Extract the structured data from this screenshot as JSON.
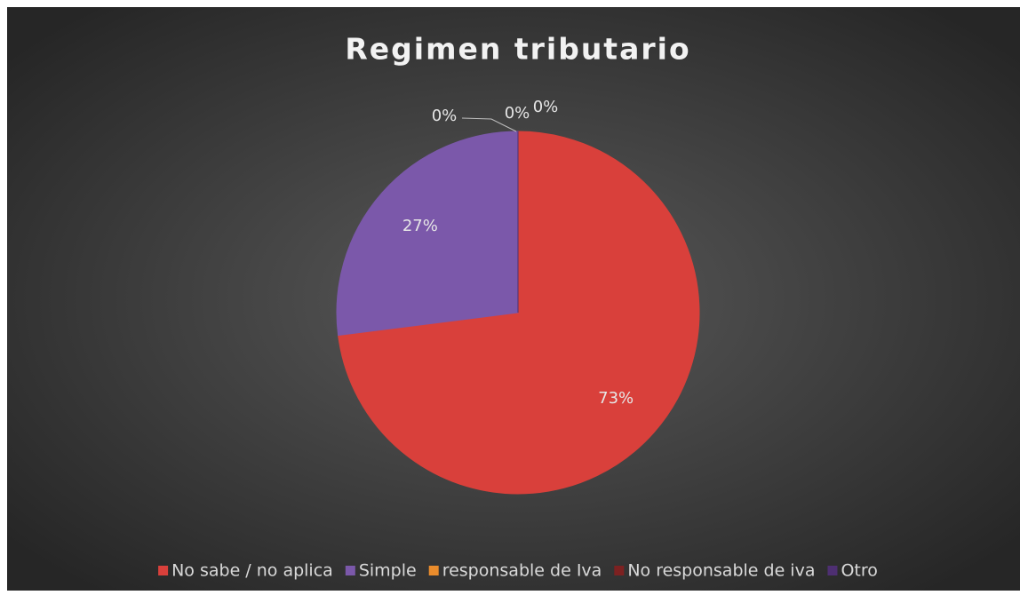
{
  "chart_data": {
    "type": "pie",
    "title": "Regimen tributario",
    "categories": [
      "No sabe / no aplica",
      "Simple",
      "responsable de Iva",
      "No responsable de iva",
      "Otro"
    ],
    "values": [
      73,
      27,
      0,
      0,
      0
    ],
    "value_labels": [
      "73%",
      "27%",
      "0%",
      "0%",
      "0%"
    ],
    "colors": [
      "#d9403b",
      "#7b58aa",
      "#ea8c2c",
      "#7d2121",
      "#4e2f72"
    ],
    "legend": "bottom"
  }
}
